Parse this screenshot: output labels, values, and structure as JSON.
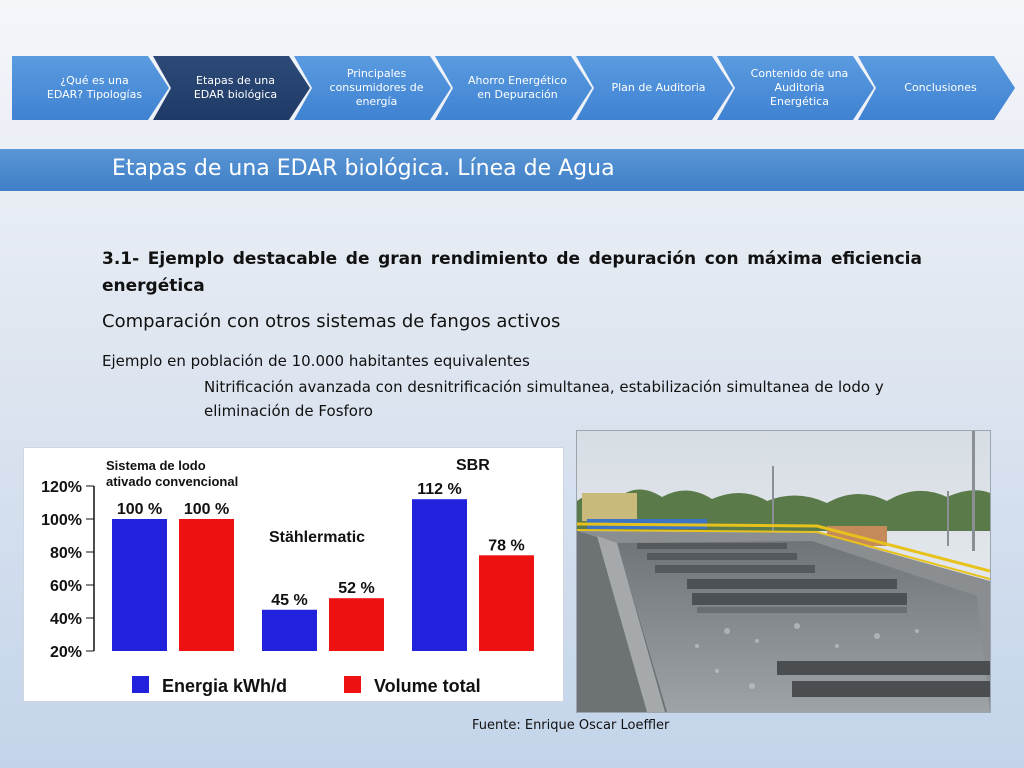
{
  "nav": {
    "steps": [
      "¿Qué es una EDAR? Tipologías",
      "Etapas de una EDAR biológica",
      "Principales consumidores de energía",
      "Ahorro Energético en Depuración",
      "Plan de Auditoria",
      "Contenido de una Auditoria Energética",
      "Conclusiones"
    ],
    "active_index": 1
  },
  "section_title": "Etapas de una EDAR biológica. Línea de Agua",
  "content": {
    "heading": "3.1-  Ejemplo destacable de gran rendimiento de depuración con máxima eficiencia energética",
    "subheading": "Comparación con otros sistemas de fangos activos",
    "line1": "Ejemplo en población de 10.000 habitantes equivalentes",
    "line2": "Nitrificación avanzada con desnitrificación simultanea, estabilización simultanea de lodo y eliminación de Fosforo"
  },
  "chart_data": {
    "type": "bar",
    "categories": [
      "Sistema de lodo ativado convencional",
      "Stählermatic",
      "SBR"
    ],
    "category_labels": [
      "Sistema de lodo\nativado convencional",
      "Stählermatic",
      "SBR"
    ],
    "series": [
      {
        "name": "Energia kWh/d",
        "color": "#2222dd",
        "values": [
          100,
          45,
          112
        ]
      },
      {
        "name": "Volume total",
        "color": "#ee1111",
        "values": [
          100,
          52,
          78
        ]
      }
    ],
    "value_labels": [
      [
        "100 %",
        "45 %",
        "112 %"
      ],
      [
        "100 %",
        "52 %",
        "78 %"
      ]
    ],
    "y_ticks": [
      "20%",
      "40%",
      "60%",
      "80%",
      "100%",
      "120%"
    ],
    "ylim": [
      20,
      120
    ],
    "grid": false,
    "legend": "bottom"
  },
  "photo": {
    "icon": "wastewater-treatment-tank-photo"
  },
  "source": "Fuente: Enrique Oscar Loeffler"
}
